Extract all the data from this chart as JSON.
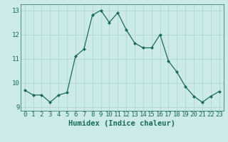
{
  "x": [
    0,
    1,
    2,
    3,
    4,
    5,
    6,
    7,
    8,
    9,
    10,
    11,
    12,
    13,
    14,
    15,
    16,
    17,
    18,
    19,
    20,
    21,
    22,
    23
  ],
  "y": [
    9.7,
    9.5,
    9.5,
    9.2,
    9.5,
    9.6,
    11.1,
    11.4,
    12.8,
    13.0,
    12.5,
    12.9,
    12.2,
    11.65,
    11.45,
    11.45,
    12.0,
    10.9,
    10.45,
    9.85,
    9.45,
    9.2,
    9.45,
    9.65
  ],
  "line_color": "#1a6b5a",
  "marker": "D",
  "marker_size": 2.0,
  "bg_color": "#cceae7",
  "grid_color": "#aad4cf",
  "xlabel": "Humidex (Indice chaleur)",
  "xlim": [
    -0.5,
    23.5
  ],
  "ylim": [
    8.85,
    13.25
  ],
  "yticks": [
    9,
    10,
    11,
    12,
    13
  ],
  "xticks": [
    0,
    1,
    2,
    3,
    4,
    5,
    6,
    7,
    8,
    9,
    10,
    11,
    12,
    13,
    14,
    15,
    16,
    17,
    18,
    19,
    20,
    21,
    22,
    23
  ],
  "tick_fontsize": 6.5,
  "xlabel_fontsize": 7.5
}
